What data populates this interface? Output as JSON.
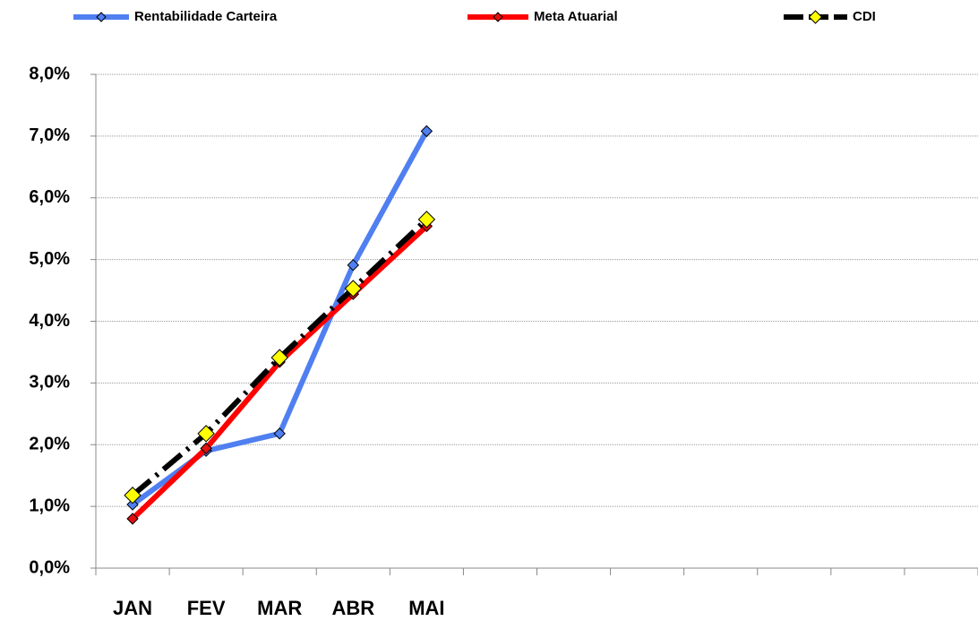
{
  "chart_data": {
    "type": "line",
    "categories": [
      "JAN",
      "FEV",
      "MAR",
      "ABR",
      "MAI",
      null,
      null,
      null,
      null,
      null,
      null,
      null
    ],
    "series": [
      {
        "name": "Rentabilidade Carteira",
        "color": "#4f7ff0",
        "marker_color": "#4f7ff0",
        "values": [
          1.03,
          1.9,
          2.18,
          4.91,
          7.08,
          null,
          null,
          null,
          null,
          null,
          null,
          null
        ]
      },
      {
        "name": "Meta Atuarial",
        "color": "#ff0000",
        "marker_color": "#e01010",
        "values": [
          0.8,
          1.94,
          3.34,
          4.44,
          5.54,
          null,
          null,
          null,
          null,
          null,
          null,
          null
        ]
      },
      {
        "name": "CDI",
        "color": "#000000",
        "marker_color": "#ffff00",
        "dashed": true,
        "values": [
          1.18,
          2.18,
          3.41,
          4.53,
          5.65,
          null,
          null,
          null,
          null,
          null,
          null,
          null
        ]
      }
    ],
    "ylim": [
      0,
      8
    ],
    "yticks": [
      {
        "value": 0,
        "label": "0,0%"
      },
      {
        "value": 1,
        "label": "1,0%"
      },
      {
        "value": 2,
        "label": "2,0%"
      },
      {
        "value": 3,
        "label": "3,0%"
      },
      {
        "value": 4,
        "label": "4,0%"
      },
      {
        "value": 5,
        "label": "5,0%"
      },
      {
        "value": 6,
        "label": "6,0%"
      },
      {
        "value": 7,
        "label": "7,0%"
      },
      {
        "value": 8,
        "label": "8,0%"
      }
    ],
    "grid": true,
    "legend": "top"
  }
}
